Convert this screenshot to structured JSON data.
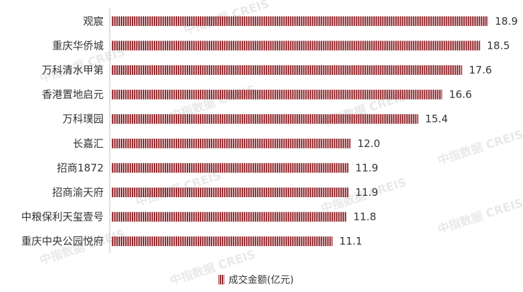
{
  "colors": {
    "bar": "#8b1a1f",
    "axis": "#bfbfbf",
    "text": "#333333",
    "watermark": "#e9e9e9"
  },
  "watermark_text": "中指数据 CREIS",
  "chart_data": {
    "type": "bar",
    "orientation": "horizontal",
    "categories": [
      "观宸",
      "重庆华侨城",
      "万科清水甲第",
      "香港置地启元",
      "万科璞园",
      "长嘉汇",
      "招商1872",
      "招商渝天府",
      "中粮保利天玺壹号",
      "重庆中央公园悦府"
    ],
    "series": [
      {
        "name": "成交金额(亿元)",
        "values": [
          18.9,
          18.5,
          17.6,
          16.6,
          15.4,
          12.0,
          11.9,
          11.9,
          11.8,
          11.1
        ]
      }
    ],
    "value_labels": [
      "18.9",
      "18.5",
      "17.6",
      "16.6",
      "15.4",
      "12.0",
      "11.9",
      "11.9",
      "11.8",
      "11.1"
    ],
    "xlim": [
      0,
      20
    ],
    "grid": false,
    "legend_position": "bottom"
  }
}
